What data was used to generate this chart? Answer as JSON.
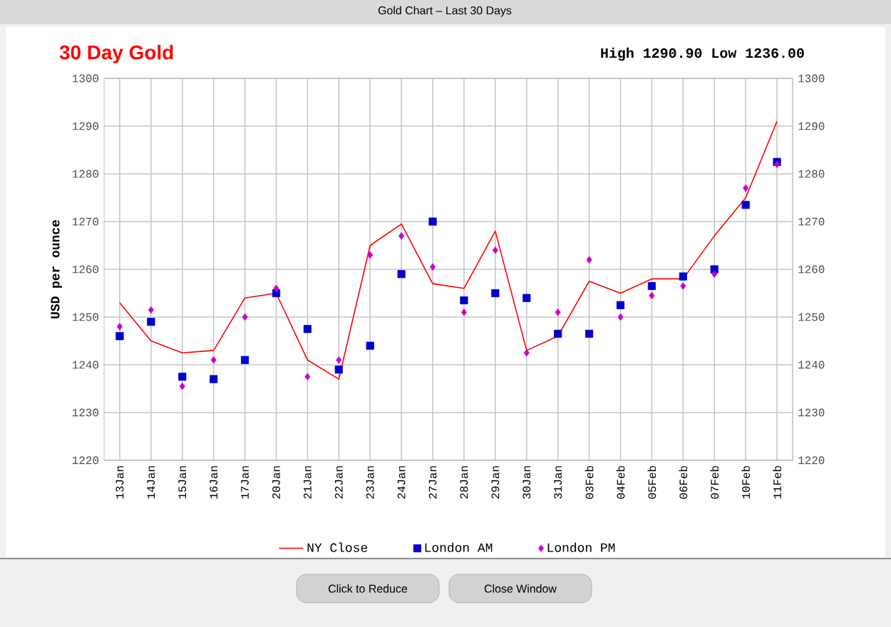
{
  "chart_data": {
    "type": "line",
    "title": "30 Day Gold",
    "subtitle": "High 1290.90 Low 1236.00",
    "ylabel": "USD per ounce",
    "annotations": [
      "Gold Chart – Last 30 Days",
      "Click to Reduce",
      "Close Window"
    ],
    "categories": [
      "13Jan",
      "14Jan",
      "15Jan",
      "16Jan",
      "17Jan",
      "20Jan",
      "21Jan",
      "22Jan",
      "23Jan",
      "24Jan",
      "27Jan",
      "28Jan",
      "29Jan",
      "30Jan",
      "31Jan",
      "03Feb",
      "04Feb",
      "05Feb",
      "06Feb",
      "07Feb",
      "10Feb",
      "11Feb"
    ],
    "series": [
      {
        "name": "NY Close",
        "type": "line",
        "color": "#ff0000",
        "marker": "none",
        "values": [
          1253,
          1245,
          1242.5,
          1243,
          1254,
          1255,
          1241,
          1237,
          1265,
          1269.5,
          1257,
          1256,
          1268,
          1243,
          1246,
          1257.5,
          1255,
          1258,
          1258,
          1267,
          1275,
          1291
        ]
      },
      {
        "name": "London AM",
        "type": "scatter",
        "color": "#0000cc",
        "marker": "square",
        "values": [
          1246,
          1249,
          1237.5,
          1237,
          1241,
          1255,
          1247.5,
          1239,
          1244,
          1259,
          1270,
          1253.5,
          1255,
          1254,
          1246.5,
          1246.5,
          1252.5,
          1256.5,
          1258.5,
          1260,
          1273.5,
          1282.5
        ]
      },
      {
        "name": "London PM",
        "type": "scatter",
        "color": "#cc00cc",
        "marker": "diamond",
        "values": [
          1248,
          1251.5,
          1235.5,
          1241,
          1250,
          1256,
          1237.5,
          1241,
          1263,
          1267,
          1260.5,
          1251,
          1264,
          1242.5,
          1251,
          1262,
          1250,
          1254.5,
          1256.5,
          1259,
          1277,
          1282
        ]
      }
    ],
    "ylim": [
      1220,
      1300
    ],
    "yticks": [
      1220,
      1230,
      1240,
      1250,
      1260,
      1270,
      1280,
      1290,
      1300
    ],
    "y2lim": [
      1220,
      1300
    ],
    "y2ticks": [
      1220,
      1230,
      1240,
      1250,
      1260,
      1270,
      1280,
      1290,
      1300
    ],
    "grid": true,
    "legend": "bottom"
  }
}
